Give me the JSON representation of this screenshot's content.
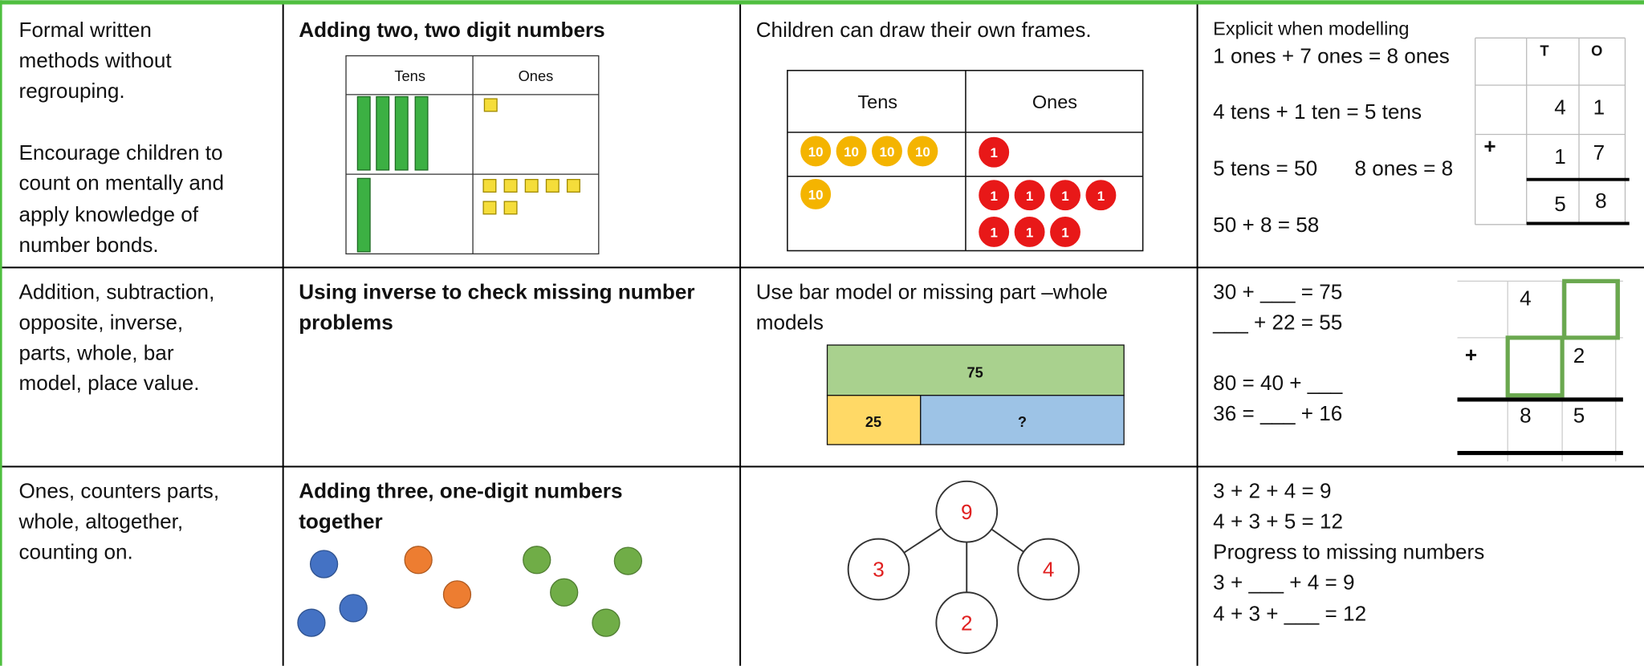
{
  "table": {
    "rows": [
      {
        "vocabulary": [
          "Formal written",
          "methods without",
          "regrouping."
        ],
        "guidance": [
          "Encourage children to",
          "count on mentally and",
          "apply knowledge of",
          "number bonds."
        ],
        "objective": [
          "Adding two, two digit numbers"
        ],
        "manipulative": {
          "headers": [
            "Tens",
            "Ones"
          ]
        },
        "representation": {
          "caption": [
            "Children can draw their own frames."
          ],
          "headers": [
            "Tens",
            "Ones"
          ],
          "ten_counter": "10",
          "one_counter": "1"
        },
        "abstract": {
          "lines": [
            "Explicit when modelling",
            "1 ones + 7 ones = 8 ones",
            "4 tens + 1 ten = 5 tens",
            "5 tens = 50",
            "8 ones = 8",
            "50 + 8 = 58"
          ],
          "column_method": {
            "headers": [
              "T",
              "O"
            ],
            "addend1": [
              "4",
              "1"
            ],
            "sign": "+",
            "addend2": [
              "1",
              "7"
            ],
            "total": [
              "5",
              "8"
            ]
          }
        }
      },
      {
        "vocabulary": [
          "Addition, subtraction,",
          "opposite, inverse,",
          "parts, whole, bar",
          "model, place value."
        ],
        "objective": [
          "Using inverse to check missing number",
          "problems"
        ],
        "representation": {
          "caption": [
            "Use bar model or missing part –whole",
            "models"
          ],
          "whole": "75",
          "part1": "25",
          "part2": "?"
        },
        "abstract": {
          "lines": [
            "30 + ___ = 75",
            "___ + 22 = 55",
            "80 = 40 + ___",
            "36 = ___ + 16"
          ],
          "column_method": {
            "addend1": "4",
            "sign": "+",
            "addend2": "2",
            "total": [
              "8",
              "5"
            ]
          }
        }
      },
      {
        "vocabulary": [
          "Ones, counters parts,",
          "whole, altogether,",
          "counting on."
        ],
        "objective": [
          "Adding three, one-digit numbers",
          "together"
        ],
        "representation": {
          "whole": "9",
          "parts": [
            "3",
            "4",
            "2"
          ]
        },
        "abstract": {
          "lines": [
            "3 + 2 + 4 = 9",
            "4 + 3 + 5 = 12",
            "Progress to missing numbers",
            "3 + ___ + 4 = 9",
            "4 + 3 + ___ = 12"
          ]
        }
      }
    ]
  }
}
